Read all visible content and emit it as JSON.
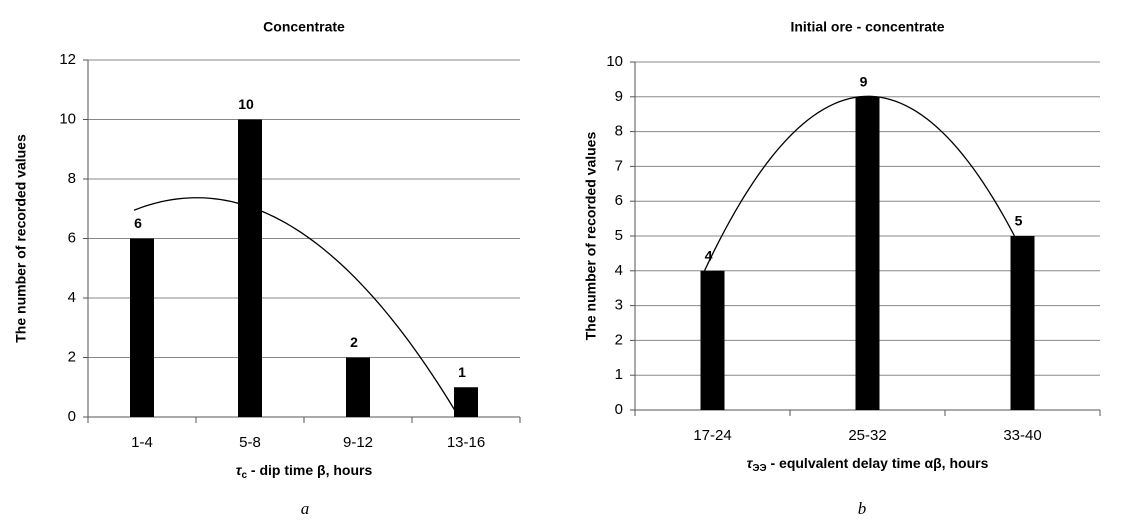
{
  "chart_data": [
    {
      "type": "bar",
      "title": "Concentrate",
      "y_label": "The number of recorded values",
      "x_label_symbol": "τ",
      "x_label_subscript": "c",
      "x_label_text": " - dip time β, hours",
      "categories": [
        "1-4",
        "5-8",
        "9-12",
        "13-16"
      ],
      "values": [
        6,
        10,
        2,
        1
      ],
      "color": "#000000",
      "ylim": [
        0,
        12
      ],
      "yticks": [
        0,
        2,
        4,
        6,
        8,
        10,
        12
      ],
      "grid": true,
      "trendline": "poly2",
      "caption": "a"
    },
    {
      "type": "bar",
      "title": "Initial ore - concentrate",
      "y_label": "The number of recorded values",
      "x_label_symbol": "τ",
      "x_label_subscript": "ЭЭ",
      "x_label_text": " - equlvalent delay time αβ, hours",
      "categories": [
        "17-24",
        "25-32",
        "33-40"
      ],
      "values": [
        4,
        9,
        5
      ],
      "color": "#000000",
      "ylim": [
        0,
        10
      ],
      "yticks": [
        0,
        1,
        2,
        3,
        4,
        5,
        6,
        7,
        8,
        9,
        10
      ],
      "grid": true,
      "trendline": "poly2",
      "caption": "b"
    }
  ]
}
